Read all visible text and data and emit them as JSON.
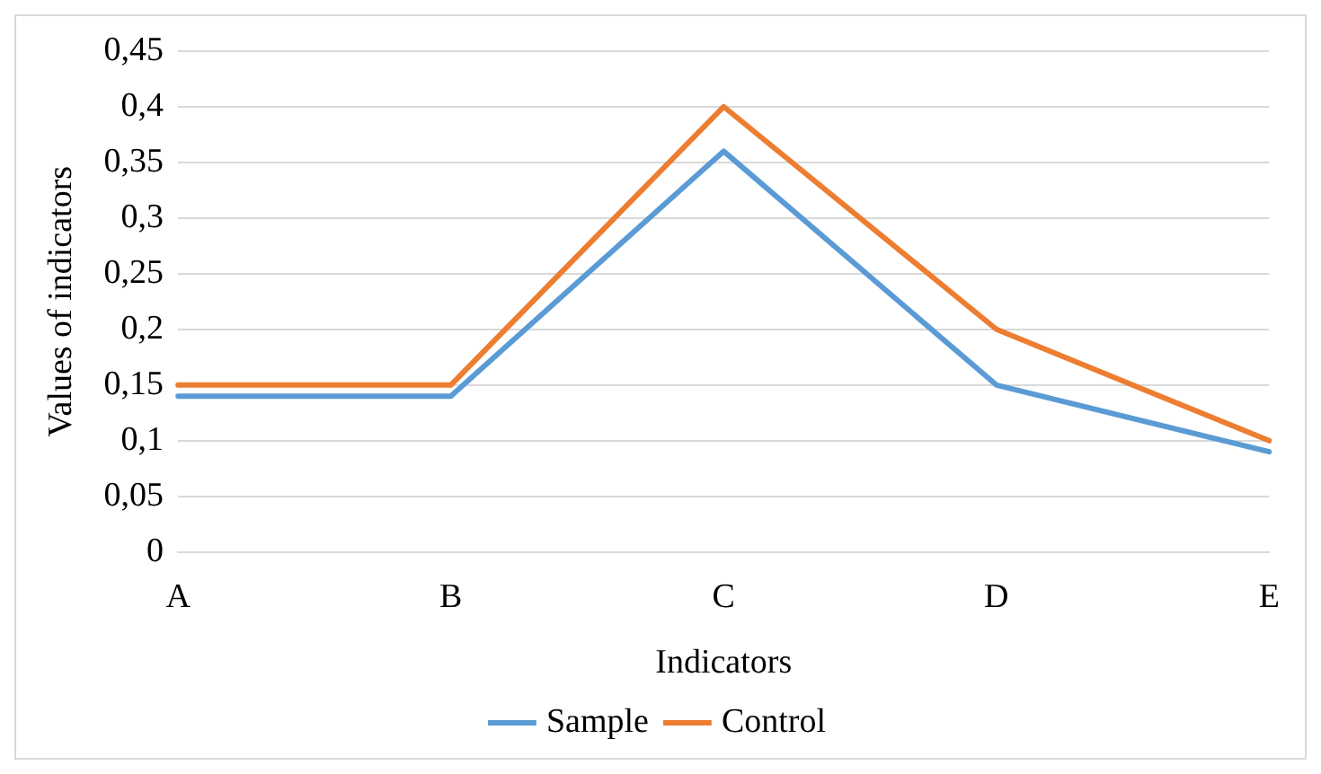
{
  "chart_data": {
    "type": "line",
    "xlabel": "Indicators",
    "ylabel": "Values of indicators",
    "categories": [
      "A",
      "B",
      "C",
      "D",
      "E"
    ],
    "series": [
      {
        "name": "Sample",
        "color": "#5b9bd5",
        "values": [
          0.14,
          0.14,
          0.36,
          0.15,
          0.09
        ]
      },
      {
        "name": "Control",
        "color": "#ed7d31",
        "values": [
          0.15,
          0.15,
          0.4,
          0.2,
          0.1
        ]
      }
    ],
    "ylim": [
      0,
      0.45
    ],
    "yticks": [
      {
        "value": 0,
        "label": "0"
      },
      {
        "value": 0.05,
        "label": "0,05"
      },
      {
        "value": 0.1,
        "label": "0,1"
      },
      {
        "value": 0.15,
        "label": "0,15"
      },
      {
        "value": 0.2,
        "label": "0,2"
      },
      {
        "value": 0.25,
        "label": "0,25"
      },
      {
        "value": 0.3,
        "label": "0,3"
      },
      {
        "value": 0.35,
        "label": "0,35"
      },
      {
        "value": 0.4,
        "label": "0,4"
      },
      {
        "value": 0.45,
        "label": "0,45"
      }
    ],
    "grid": "y",
    "legend": "bottom",
    "marker": "none",
    "line_style": "solid"
  }
}
